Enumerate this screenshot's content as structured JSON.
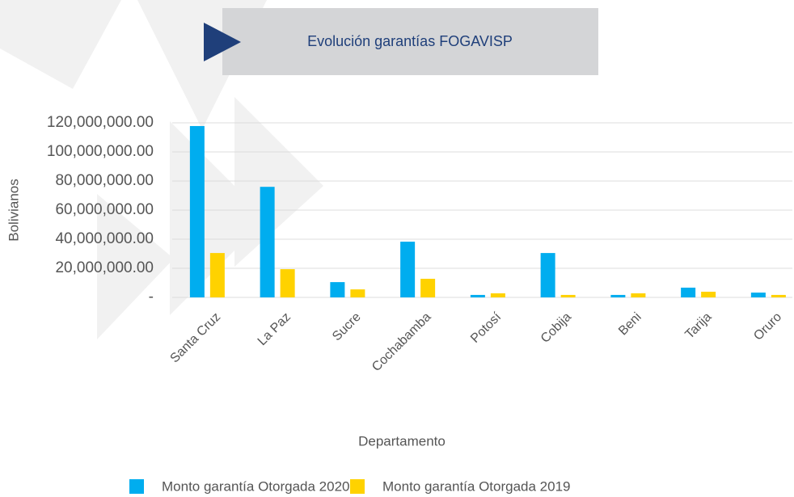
{
  "chart_data": {
    "type": "bar",
    "title": "Evolución garantías FOGAVISP",
    "x_label": "Departamento",
    "y_label": "Bolivianos",
    "categories": [
      "Santa Cruz",
      "La Paz",
      "Sucre",
      "Cochabamba",
      "Potosí",
      "Cobija",
      "Beni",
      "Tarija",
      "Oruro"
    ],
    "series": [
      {
        "name": "Monto garantía Otorgada 2020",
        "color": "#00adef",
        "values": [
          117800000,
          76000000,
          10500000,
          38300000,
          1700000,
          30500000,
          1700000,
          6700000,
          3300000
        ]
      },
      {
        "name": "Monto garantía Otorgada 2019",
        "color": "#ffd200",
        "values": [
          30500000,
          19400000,
          5500000,
          12800000,
          2800000,
          1700000,
          2800000,
          3900000,
          1700000
        ]
      }
    ],
    "ylim": [
      0,
      120000000
    ],
    "yticks": [
      {
        "value": 0,
        "label": "-"
      },
      {
        "value": 20000000,
        "label": "20,000,000.00"
      },
      {
        "value": 40000000,
        "label": "40,000,000.00"
      },
      {
        "value": 60000000,
        "label": "60,000,000.00"
      },
      {
        "value": 80000000,
        "label": "80,000,000.00"
      },
      {
        "value": 100000000,
        "label": "100,000,000.00"
      },
      {
        "value": 120000000,
        "label": "120,000,000.00"
      }
    ],
    "grid": true,
    "legend": "bottom"
  }
}
